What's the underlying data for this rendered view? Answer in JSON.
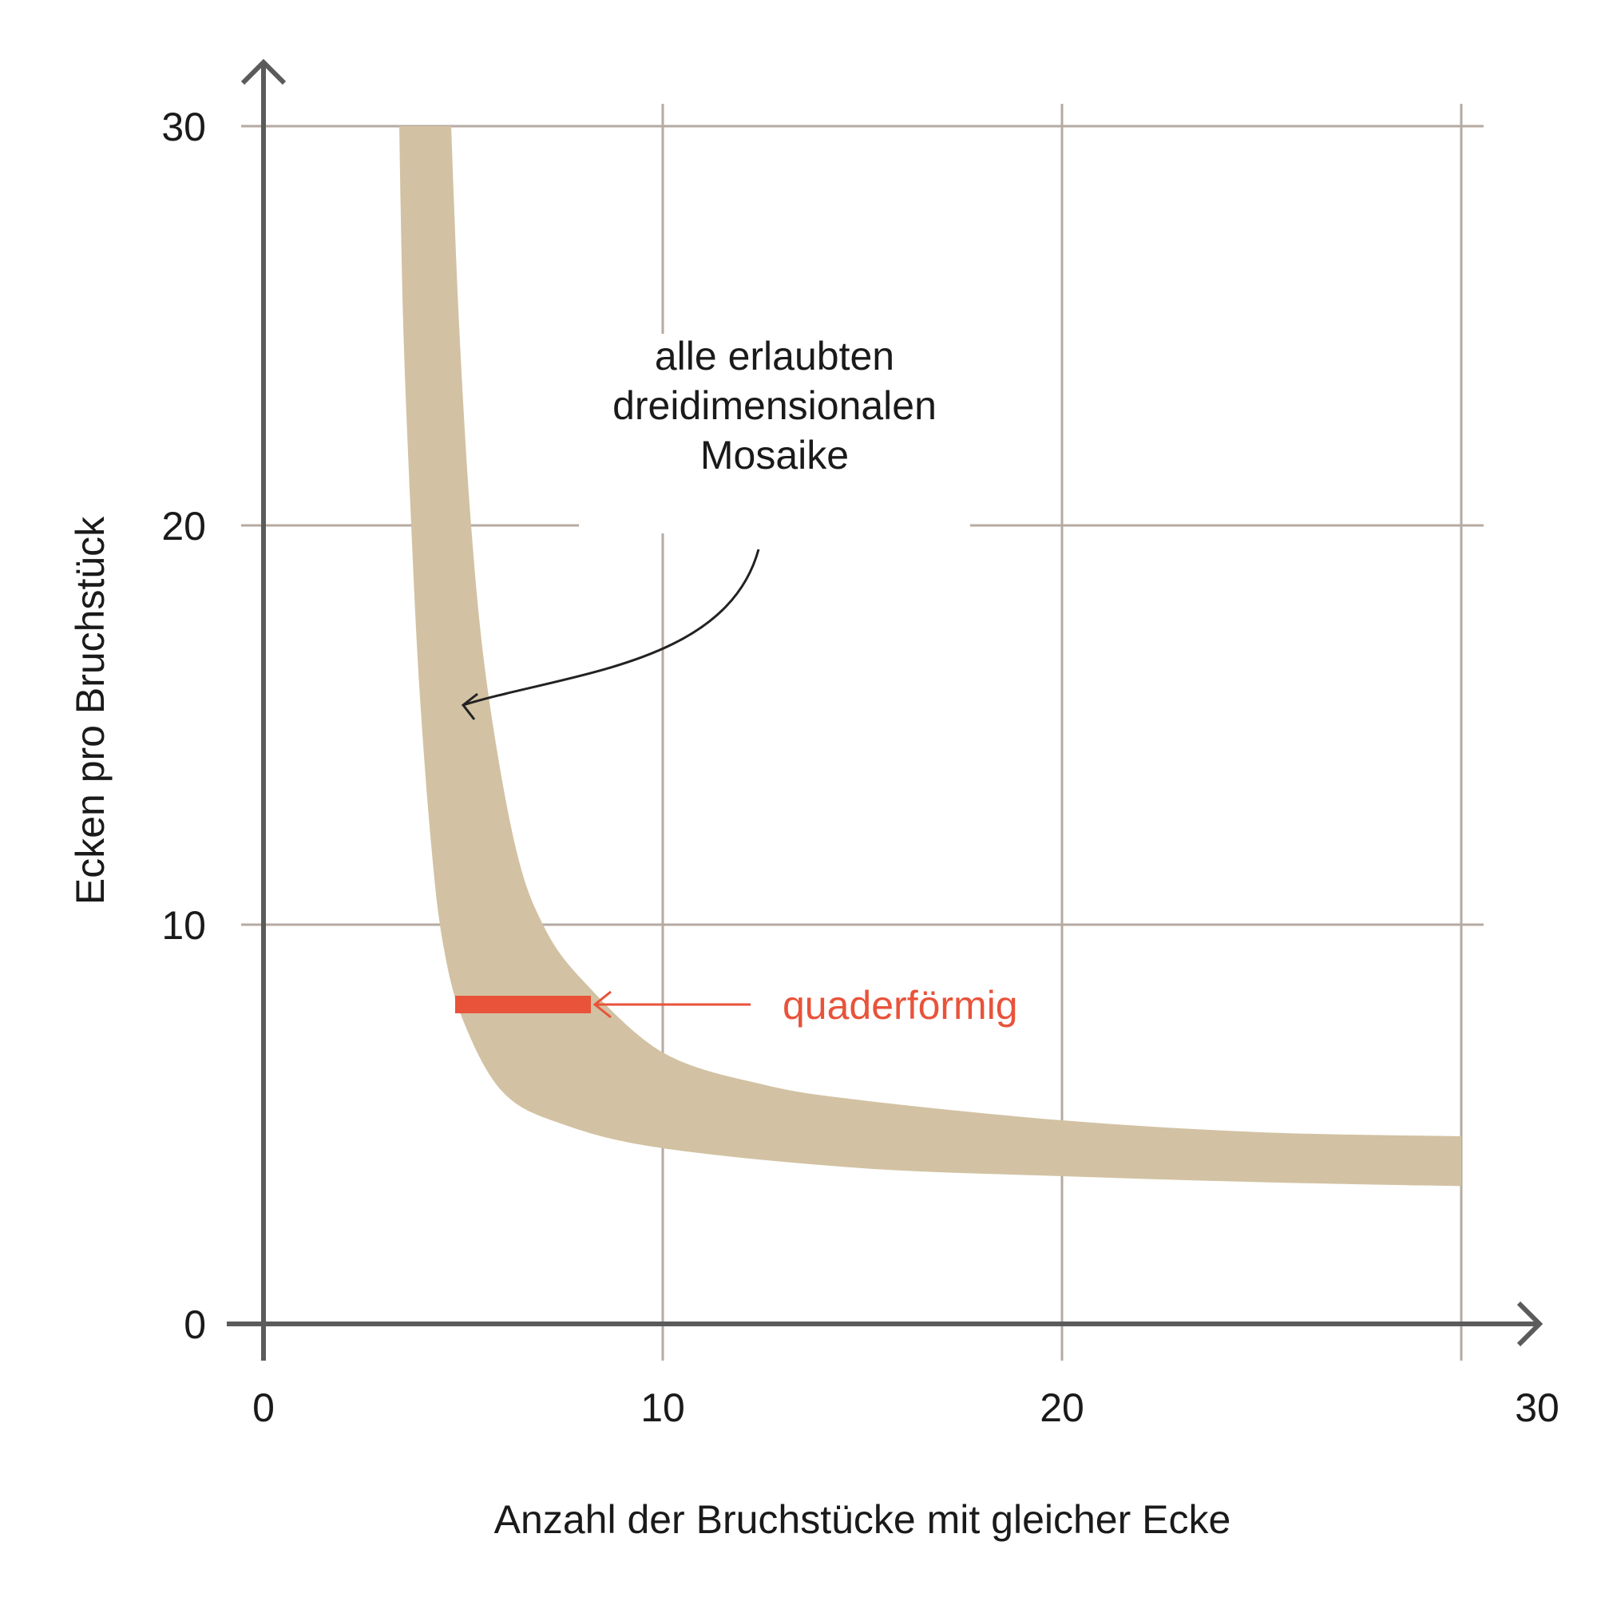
{
  "chart_data": {
    "type": "area",
    "xlabel": "Anzahl der Bruchstücke mit gleicher Ecke",
    "ylabel": "Ecken pro Bruchstück",
    "xlim": [
      0,
      30
    ],
    "ylim": [
      0,
      30
    ],
    "x_ticks": [
      "0",
      "10",
      "20",
      "30"
    ],
    "y_ticks": [
      "0",
      "10",
      "20",
      "30"
    ],
    "grid": true,
    "band": {
      "name": "alle erlaubten dreidimensionalen Mosaike",
      "color": "#d2c2a3",
      "upper": [
        [
          4.7,
          30
        ],
        [
          4.9,
          25
        ],
        [
          5.2,
          20
        ],
        [
          5.6,
          16
        ],
        [
          6.3,
          12
        ],
        [
          7.0,
          10
        ],
        [
          8.0,
          8.6
        ],
        [
          10.0,
          6.8
        ],
        [
          12.5,
          6.0
        ],
        [
          15,
          5.6
        ],
        [
          20,
          5.1
        ],
        [
          25,
          4.8
        ],
        [
          30,
          4.7
        ]
      ],
      "lower": [
        [
          3.4,
          30
        ],
        [
          3.5,
          25
        ],
        [
          3.7,
          20
        ],
        [
          3.9,
          16
        ],
        [
          4.2,
          12
        ],
        [
          4.5,
          9.5
        ],
        [
          5.0,
          7.6
        ],
        [
          6.0,
          5.8
        ],
        [
          7.5,
          5.0
        ],
        [
          10.0,
          4.4
        ],
        [
          15,
          3.9
        ],
        [
          20,
          3.7
        ],
        [
          25,
          3.55
        ],
        [
          30,
          3.45
        ]
      ]
    },
    "highlight": {
      "label": "quaderförmig",
      "y": 8,
      "x_from": 4.8,
      "x_to": 8.2,
      "color": "#e8533a"
    },
    "annotations": [
      {
        "lines": [
          "alle erlaubten",
          "dreidimensionalen",
          "Mosaike"
        ],
        "anchor": [
          12.8,
          20.5
        ],
        "arrow_target": [
          5.0,
          15.5
        ]
      },
      {
        "text": "quaderförmig",
        "anchor": [
          13.0,
          8.0
        ],
        "arrow_from": [
          12.2,
          8.0
        ],
        "arrow_target": [
          8.3,
          8.0
        ]
      }
    ],
    "colors": {
      "axis": "#5b5b5b",
      "grid": "#b6aaa2",
      "band": "#d2c2a3",
      "highlight": "#e8533a"
    }
  }
}
